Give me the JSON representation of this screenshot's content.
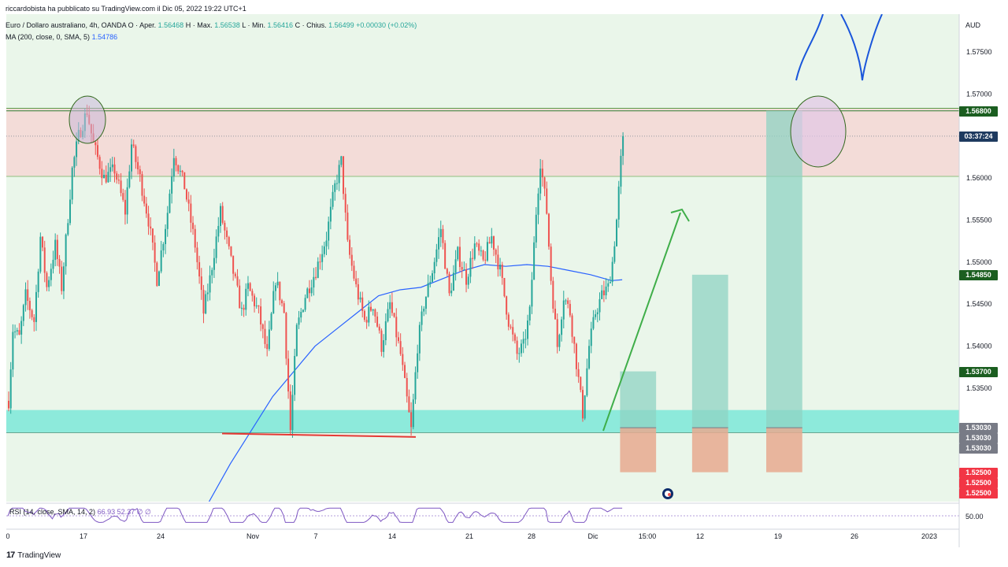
{
  "credit": "riccardobista ha pubblicato su TradingView.com il Dic 05, 2022 19:22 UTC+1",
  "legend": {
    "symbol": "Euro / Dollaro australiano, 4h, OANDA",
    "o_label": "O",
    "open_label": "Aper.",
    "open": "1.56468",
    "h_label": "H",
    "high_label": "Max.",
    "high": "1.56538",
    "l_label": "L",
    "low_label": "Min.",
    "low": "1.56416",
    "c_label": "C",
    "close_label": "Chius.",
    "close": "1.56499",
    "change": "+0.00030 (+0.02%)",
    "ma_label": "MA (200, close, 0, SMA, 5)",
    "ma_value": "1.54786"
  },
  "currency": "AUD",
  "rsi_label": "RSI (14, close, SMA, 14, 2)",
  "rsi_values": "66.93 52.37 ∅ ∅",
  "rsi_tick": "50.00",
  "countdown": "03:37:24",
  "brand": "TradingView",
  "colors": {
    "up": "#26a69a",
    "down": "#ef5350",
    "ma": "#2962ff",
    "support_zone": "#7de8d8",
    "resistance_zone": "#f3dcd8",
    "target_box": "#8fd3c3",
    "stop_box": "#e8a98f",
    "arrow": "#3fae49",
    "badge_green": "#1b5e20",
    "badge_red": "#f23645",
    "badge_gray": "#787b86",
    "badge_blue": "#1e3a5f"
  },
  "chart_data": {
    "type": "candlestick",
    "timeframe": "4h",
    "y_axis": {
      "range": [
        1.5215,
        1.5795
      ],
      "ticks": [
        "1.57500",
        "1.57000",
        "1.56500",
        "1.56000",
        "1.55500",
        "1.55000",
        "1.54500",
        "1.54000",
        "1.53500"
      ]
    },
    "x_axis": {
      "ticks": [
        "0",
        "17",
        "24",
        "Nov",
        "7",
        "14",
        "21",
        "28",
        "Dic",
        "15:00",
        "12",
        "19",
        "26",
        "2023"
      ]
    },
    "ohlc_path": [
      [
        0,
        1.5335
      ],
      [
        2,
        1.542
      ],
      [
        5,
        1.541
      ],
      [
        8,
        1.546
      ],
      [
        12,
        1.543
      ],
      [
        15,
        1.553
      ],
      [
        18,
        1.547
      ],
      [
        22,
        1.552
      ],
      [
        25,
        1.547
      ],
      [
        30,
        1.561
      ],
      [
        33,
        1.565
      ],
      [
        37,
        1.568
      ],
      [
        40,
        1.564
      ],
      [
        45,
        1.56
      ],
      [
        50,
        1.561
      ],
      [
        55,
        1.556
      ],
      [
        58,
        1.564
      ],
      [
        62,
        1.56
      ],
      [
        66,
        1.555
      ],
      [
        70,
        1.548
      ],
      [
        75,
        1.556
      ],
      [
        78,
        1.563
      ],
      [
        83,
        1.559
      ],
      [
        88,
        1.552
      ],
      [
        92,
        1.544
      ],
      [
        95,
        1.548
      ],
      [
        100,
        1.556
      ],
      [
        105,
        1.55
      ],
      [
        110,
        1.544
      ],
      [
        113,
        1.547
      ],
      [
        118,
        1.544
      ],
      [
        122,
        1.539
      ],
      [
        126,
        1.548
      ],
      [
        130,
        1.544
      ],
      [
        133,
        1.53
      ],
      [
        136,
        1.542
      ],
      [
        140,
        1.546
      ],
      [
        145,
        1.549
      ],
      [
        150,
        1.553
      ],
      [
        154,
        1.559
      ],
      [
        157,
        1.562
      ],
      [
        160,
        1.552
      ],
      [
        164,
        1.547
      ],
      [
        168,
        1.543
      ],
      [
        172,
        1.545
      ],
      [
        176,
        1.54
      ],
      [
        180,
        1.545
      ],
      [
        185,
        1.539
      ],
      [
        190,
        1.53
      ],
      [
        193,
        1.54
      ],
      [
        196,
        1.545
      ],
      [
        200,
        1.549
      ],
      [
        204,
        1.554
      ],
      [
        208,
        1.546
      ],
      [
        212,
        1.551
      ],
      [
        216,
        1.548
      ],
      [
        220,
        1.552
      ],
      [
        224,
        1.55
      ],
      [
        228,
        1.553
      ],
      [
        232,
        1.549
      ],
      [
        236,
        1.543
      ],
      [
        240,
        1.539
      ],
      [
        243,
        1.54
      ],
      [
        246,
        1.544
      ],
      [
        249,
        1.556
      ],
      [
        251,
        1.562
      ],
      [
        254,
        1.556
      ],
      [
        256,
        1.548
      ],
      [
        259,
        1.54
      ],
      [
        262,
        1.546
      ],
      [
        265,
        1.544
      ],
      [
        268,
        1.538
      ],
      [
        271,
        1.532
      ],
      [
        274,
        1.54
      ],
      [
        277,
        1.544
      ],
      [
        280,
        1.546
      ],
      [
        283,
        1.547
      ],
      [
        285,
        1.55
      ],
      [
        287,
        1.555
      ],
      [
        289,
        1.562
      ],
      [
        290,
        1.565
      ]
    ],
    "ma200_path": [
      [
        95,
        1.5215
      ],
      [
        105,
        1.526
      ],
      [
        115,
        1.53
      ],
      [
        125,
        1.534
      ],
      [
        135,
        1.537
      ],
      [
        145,
        1.54
      ],
      [
        155,
        1.542
      ],
      [
        165,
        1.544
      ],
      [
        175,
        1.546
      ],
      [
        185,
        1.5467
      ],
      [
        195,
        1.547
      ],
      [
        205,
        1.548
      ],
      [
        215,
        1.549
      ],
      [
        225,
        1.5497
      ],
      [
        235,
        1.5495
      ],
      [
        245,
        1.5497
      ],
      [
        255,
        1.5495
      ],
      [
        265,
        1.549
      ],
      [
        275,
        1.5485
      ],
      [
        285,
        1.5478
      ],
      [
        290,
        1.5479
      ]
    ],
    "levels": {
      "resistance_line": 1.568,
      "resistance_zone": [
        1.5602,
        1.5683
      ],
      "support_zone": [
        1.5297,
        1.5324
      ],
      "support_line": 1.5297,
      "neckline": 1.5296
    },
    "positions": [
      {
        "start": 289,
        "end": 306,
        "entry": 1.5303,
        "target": 1.537,
        "stop": 1.525
      },
      {
        "start": 323,
        "end": 340,
        "entry": 1.5303,
        "target": 1.5485,
        "stop": 1.525
      },
      {
        "start": 358,
        "end": 375,
        "entry": 1.5303,
        "target": 1.568,
        "stop": 1.525
      }
    ],
    "price_badges": [
      {
        "price": 1.568,
        "text": "1.56800",
        "color": "#1b5e20"
      },
      {
        "price": 1.56499,
        "text": "1.56499",
        "color": "#1e3a5f",
        "countdown": true
      },
      {
        "price": 1.5485,
        "text": "1.54850",
        "color": "#1b5e20"
      },
      {
        "price": 1.537,
        "text": "1.53700",
        "color": "#1b5e20"
      },
      {
        "price": 1.5303,
        "text": "1.53030",
        "color": "#787b86"
      },
      {
        "price": 1.525,
        "text": "1.52500",
        "color": "#f23645"
      }
    ],
    "rsi": {
      "value": 66.93,
      "sma": 52.37,
      "mid": 50
    }
  }
}
